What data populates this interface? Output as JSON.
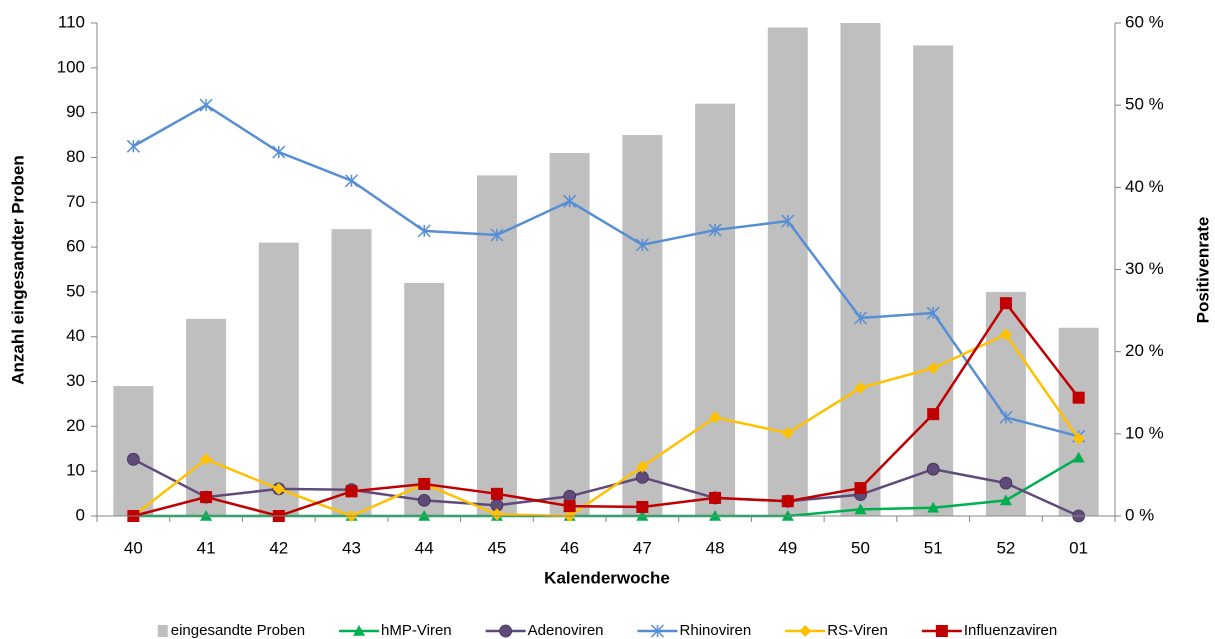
{
  "chart_data": {
    "type": "combo",
    "x_label": "Kalenderwoche",
    "y_label": "Anzahl eingesandter Proben",
    "y2_label": "Positivenrate",
    "categories": [
      "40",
      "41",
      "42",
      "43",
      "44",
      "45",
      "46",
      "47",
      "48",
      "49",
      "50",
      "51",
      "52",
      "01"
    ],
    "ylim": [
      0,
      110
    ],
    "yticks": [
      0,
      10,
      20,
      30,
      40,
      50,
      60,
      70,
      80,
      90,
      100,
      110
    ],
    "y2lim": [
      0,
      60
    ],
    "y2ticks": [
      {
        "value": 0,
        "label": "0 %"
      },
      {
        "value": 10,
        "label": "10 %"
      },
      {
        "value": 20,
        "label": "20 %"
      },
      {
        "value": 30,
        "label": "30 %"
      },
      {
        "value": 40,
        "label": "40 %"
      },
      {
        "value": 50,
        "label": "50 %"
      },
      {
        "value": 60,
        "label": "60 %"
      }
    ],
    "legend": "bottom",
    "series": [
      {
        "name": "eingesandte Proben",
        "type": "bar",
        "axis": "y",
        "color": "#bfbfbf",
        "values": [
          29,
          44,
          61,
          64,
          52,
          76,
          81,
          85,
          92,
          109,
          110,
          105,
          50,
          42
        ]
      },
      {
        "name": "hMP-Viren",
        "type": "line",
        "axis": "y2",
        "color": "#00b050",
        "marker": "triangle",
        "values": [
          0,
          0,
          0,
          0,
          0,
          0,
          0,
          0,
          0,
          0,
          0.8,
          1.0,
          1.9,
          7.1
        ]
      },
      {
        "name": "Adenoviren",
        "type": "line",
        "axis": "y2",
        "color": "#604a7b",
        "marker": "circle",
        "values": [
          6.9,
          2.3,
          3.3,
          3.2,
          1.9,
          1.3,
          2.4,
          4.7,
          2.2,
          1.8,
          2.6,
          5.7,
          4.0,
          0
        ]
      },
      {
        "name": "Rhinoviren",
        "type": "line",
        "axis": "y2",
        "color": "#558ed5",
        "marker": "star",
        "values": [
          45,
          50,
          44.3,
          40.8,
          34.7,
          34.2,
          38.3,
          33.0,
          34.8,
          35.9,
          24.1,
          24.7,
          12.0,
          9.7
        ]
      },
      {
        "name": "RS-Viren",
        "type": "line",
        "axis": "y2",
        "color": "#ffc000",
        "marker": "diamond",
        "values": [
          0,
          6.9,
          3.3,
          0,
          3.9,
          0.2,
          0,
          6.0,
          12.0,
          10.1,
          15.6,
          18.0,
          22.1,
          9.4
        ]
      },
      {
        "name": "Influenzaviren",
        "type": "line",
        "axis": "y2",
        "color": "#c00000",
        "marker": "square",
        "values": [
          0,
          2.3,
          0,
          3.0,
          3.9,
          2.7,
          1.2,
          1.1,
          2.2,
          1.8,
          3.4,
          12.4,
          25.9,
          14.4
        ]
      }
    ]
  }
}
